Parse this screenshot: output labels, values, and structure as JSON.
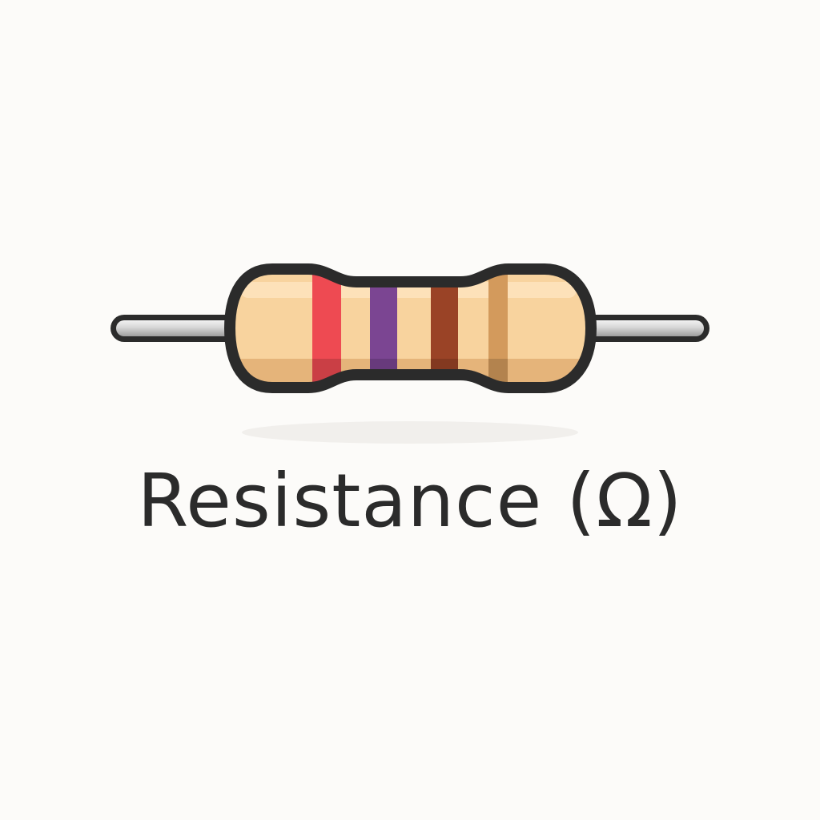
{
  "caption": {
    "text": "Resistance (Ω)",
    "color": "#2b2b2b"
  },
  "resistor": {
    "icon": "resistor-icon",
    "body_color": "#f8d39e",
    "body_shade_color": "#e5b47a",
    "outline_color": "#2b2b2b",
    "lead_color": "#c9c9c9",
    "bands": [
      {
        "name": "red",
        "color": "#ee4a52"
      },
      {
        "name": "violet",
        "color": "#7b4592"
      },
      {
        "name": "brown",
        "color": "#9a4326"
      },
      {
        "name": "gold",
        "color": "#d39a5c"
      }
    ]
  }
}
